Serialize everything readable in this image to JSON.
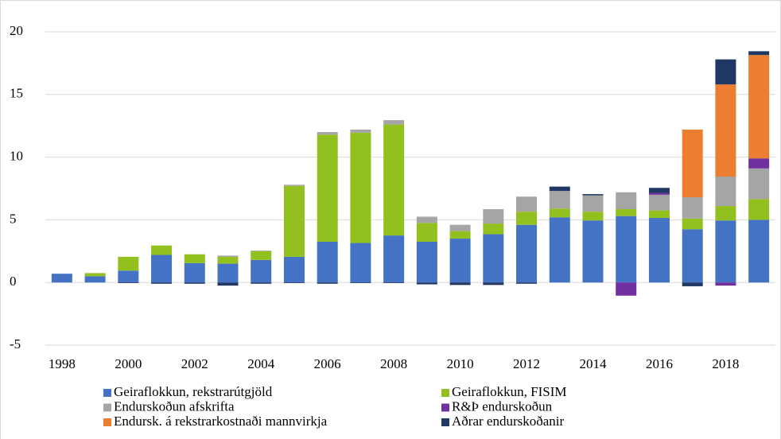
{
  "chart_data": {
    "type": "stacked_bar",
    "categories": [
      "1998",
      null,
      "2000",
      null,
      "2002",
      null,
      "2004",
      null,
      "2006",
      null,
      "2008",
      null,
      "2010",
      null,
      "2012",
      null,
      "2014",
      null,
      "2016",
      null,
      "2018",
      null
    ],
    "series": [
      {
        "name": "Geiraflokkun, rekstrarútgjöld",
        "color": "#4472c4",
        "values": [
          0.7,
          0.5,
          0.95,
          2.2,
          1.55,
          1.5,
          1.8,
          2.05,
          3.25,
          3.15,
          3.75,
          3.25,
          3.5,
          3.85,
          4.6,
          5.2,
          4.95,
          5.3,
          5.15,
          4.25,
          4.95,
          5.0
        ]
      },
      {
        "name": "Geiraflokkun, FISIM",
        "color": "#92c01f",
        "values": [
          0,
          0.25,
          1.1,
          0.75,
          0.7,
          0.55,
          0.7,
          5.65,
          8.55,
          8.8,
          8.85,
          1.5,
          0.6,
          0.85,
          1.05,
          0.7,
          0.7,
          0.55,
          0.6,
          0.85,
          1.15,
          1.65
        ]
      },
      {
        "name": "Endurskoðun afskrifta",
        "color": "#a5a5a5",
        "values": [
          0,
          0,
          0,
          0,
          0,
          0.1,
          0.05,
          0.1,
          0.2,
          0.25,
          0.35,
          0.5,
          0.5,
          1.15,
          1.2,
          1.4,
          1.3,
          1.35,
          1.25,
          1.7,
          2.35,
          2.45
        ]
      },
      {
        "name": "R&Þ endurskoðun",
        "color": "#7030a0",
        "values": [
          0,
          0,
          0,
          0,
          0,
          0,
          0,
          0,
          0,
          0,
          0,
          0,
          0,
          0,
          0,
          0,
          0,
          -1.05,
          0.15,
          0,
          -0.25,
          0.8
        ]
      },
      {
        "name": "Endursk. á rekstrarkostnaði mannvirkja",
        "color": "#ed7d31",
        "values": [
          0,
          0,
          0,
          0,
          0,
          0,
          0,
          0,
          0,
          0,
          0,
          0,
          0,
          0,
          0,
          0,
          0,
          0,
          0,
          5.4,
          7.35,
          8.25
        ]
      },
      {
        "name": "Aðrar endurskoðanir",
        "color": "#1f3864",
        "values": [
          0,
          0,
          -0.05,
          -0.1,
          -0.1,
          -0.25,
          -0.1,
          -0.05,
          -0.1,
          -0.05,
          -0.05,
          -0.15,
          -0.2,
          -0.2,
          -0.1,
          0.35,
          0.1,
          0,
          0.4,
          -0.3,
          2.0,
          0.3
        ]
      }
    ],
    "ylim": [
      -5,
      20
    ],
    "yticks": [
      -5,
      0,
      5,
      10,
      15,
      20
    ],
    "grid": true,
    "legend": "bottom"
  }
}
